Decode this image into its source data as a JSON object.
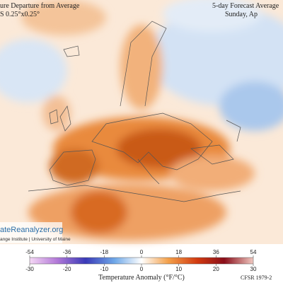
{
  "header": {
    "title": "ure Departure from Average",
    "subtitle": "S 0.25°x0.25°",
    "right_title": "5-day Forecast Average",
    "date": "Sunday, Ap"
  },
  "logo": {
    "site": "ateReanalyzer.org",
    "institute": "ange Institute | University of Maine"
  },
  "legend": {
    "fahrenheit_ticks": [
      -54,
      -36,
      -18,
      0,
      18,
      36,
      54
    ],
    "celsius_ticks": [
      -30,
      -20,
      -10,
      0,
      10,
      20,
      30
    ],
    "label": "Temperature Anomaly (°F/°C)"
  },
  "footer": {
    "source": "CFSR 1979-2"
  }
}
